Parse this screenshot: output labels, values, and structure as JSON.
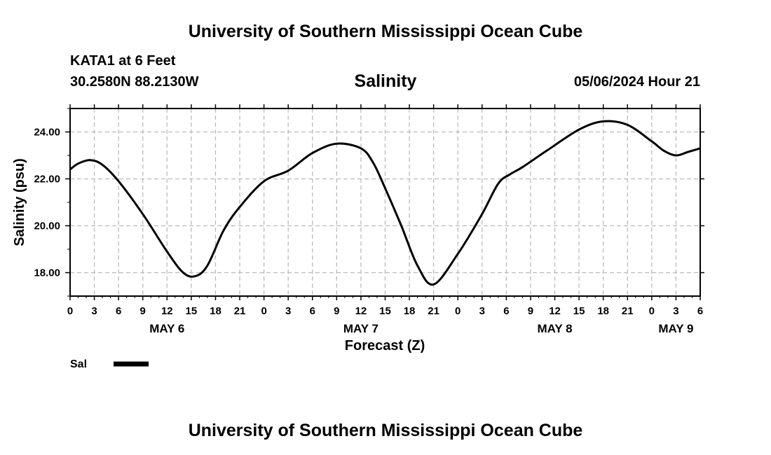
{
  "header": {
    "title": "University of Southern Mississippi Ocean Cube",
    "station": "KATA1 at 6 Feet",
    "coordinates": "30.2580N  88.2130W",
    "variable": "Salinity",
    "datetime": "05/06/2024 Hour 21"
  },
  "footer": {
    "title": "University of Southern Mississippi Ocean Cube"
  },
  "chart_data": {
    "type": "line",
    "title": "Salinity",
    "xlabel": "Forecast (Z)",
    "ylabel": "Salinity (psu)",
    "ylim": [
      17.0,
      25.0
    ],
    "xlim_hours": [
      0,
      78
    ],
    "grid": true,
    "y_ticks": [
      18.0,
      20.0,
      22.0,
      24.0
    ],
    "y_tick_labels": [
      "18.00",
      "20.00",
      "22.00",
      "24.00"
    ],
    "x_tick_hours": [
      0,
      3,
      6,
      9,
      12,
      15,
      18,
      21,
      24,
      27,
      30,
      33,
      36,
      39,
      42,
      45,
      48,
      51,
      54,
      57,
      60,
      63,
      66,
      69,
      72,
      75,
      78
    ],
    "x_tick_labels": [
      "0",
      "3",
      "6",
      "9",
      "12",
      "15",
      "18",
      "21",
      "0",
      "3",
      "6",
      "9",
      "12",
      "15",
      "18",
      "21",
      "0",
      "3",
      "6",
      "9",
      "12",
      "15",
      "18",
      "21",
      "0",
      "3",
      "6"
    ],
    "day_labels": [
      {
        "hour": 12,
        "label": "MAY 6"
      },
      {
        "hour": 36,
        "label": "MAY 7"
      },
      {
        "hour": 60,
        "label": "MAY 8"
      },
      {
        "hour": 75,
        "label": "MAY 9"
      }
    ],
    "legend": [
      {
        "name": "Sal",
        "color": "#000000"
      }
    ],
    "series": [
      {
        "name": "Sal",
        "color": "#000000",
        "x": [
          0,
          1,
          2.5,
          4,
          6,
          9,
          12,
          14,
          15.5,
          17,
          19,
          21,
          24,
          27,
          30,
          33,
          36,
          37.5,
          39,
          41,
          43,
          45,
          48,
          51,
          53,
          54.5,
          56,
          59,
          63,
          66,
          69,
          72,
          73.5,
          75,
          76.5,
          78
        ],
        "values": [
          22.4,
          22.65,
          22.8,
          22.6,
          21.9,
          20.5,
          18.9,
          18.0,
          17.85,
          18.3,
          19.8,
          20.8,
          21.9,
          22.35,
          23.1,
          23.5,
          23.3,
          22.7,
          21.6,
          20.0,
          18.3,
          17.5,
          18.8,
          20.5,
          21.8,
          22.2,
          22.5,
          23.2,
          24.1,
          24.45,
          24.3,
          23.6,
          23.2,
          23.0,
          23.15,
          23.3
        ]
      }
    ]
  }
}
